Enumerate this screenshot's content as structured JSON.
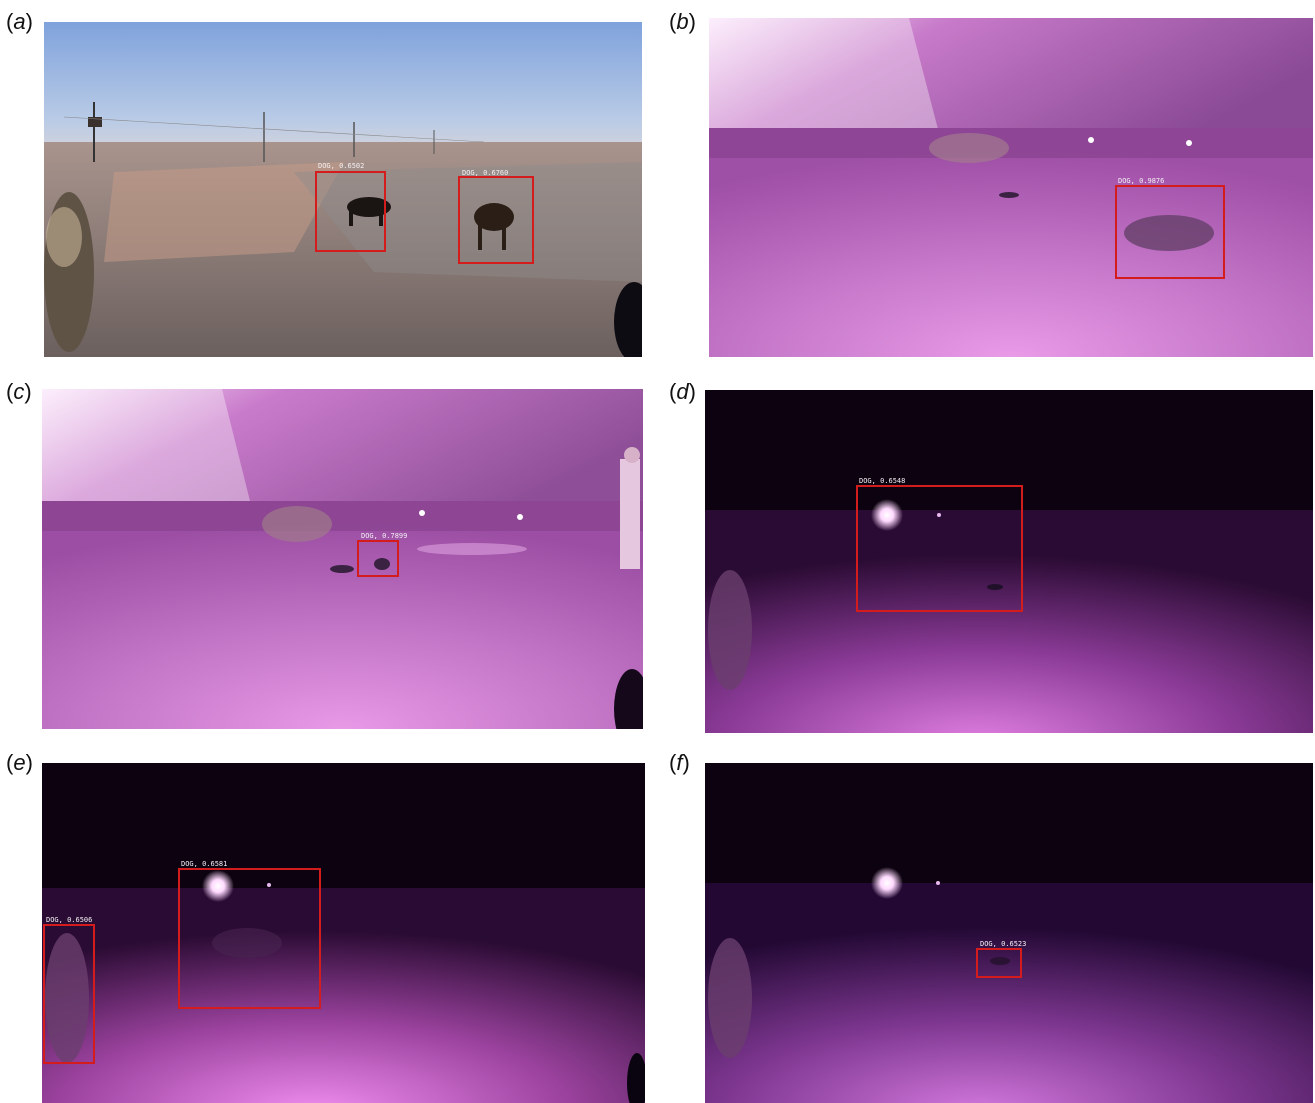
{
  "figure": {
    "panels": [
      {
        "id": "a",
        "label_prefix": "(",
        "label_letter": "a",
        "label_suffix": ")",
        "scene": "daylight",
        "detections": [
          {
            "text": "DOG, 0.6502"
          },
          {
            "text": "DOG, 0.6760"
          }
        ]
      },
      {
        "id": "b",
        "label_prefix": "(",
        "label_letter": "b",
        "label_suffix": ")",
        "scene": "dusk-infrared",
        "detections": [
          {
            "text": "DOG, 0.9876"
          }
        ]
      },
      {
        "id": "c",
        "label_prefix": "(",
        "label_letter": "c",
        "label_suffix": ")",
        "scene": "dusk-infrared",
        "detections": [
          {
            "text": "DOG, 0.7899"
          }
        ]
      },
      {
        "id": "d",
        "label_prefix": "(",
        "label_letter": "d",
        "label_suffix": ")",
        "scene": "night-infrared",
        "detections": [
          {
            "text": "DOG, 0.6548"
          }
        ]
      },
      {
        "id": "e",
        "label_prefix": "(",
        "label_letter": "e",
        "label_suffix": ")",
        "scene": "night-infrared",
        "detections": [
          {
            "text": "DOG, 0.6581"
          },
          {
            "text": "DOG, 0.6506"
          }
        ]
      },
      {
        "id": "f",
        "label_prefix": "(",
        "label_letter": "f",
        "label_suffix": ")",
        "scene": "night-infrared",
        "detections": [
          {
            "text": "DOG, 0.6523"
          }
        ]
      }
    ],
    "colors": {
      "box": "#d41c1c",
      "sky_day": "#8fb4e8",
      "ground_day": "#7d6f6a",
      "ir_magenta": "#c560c8",
      "night_sky": "#0d0210"
    }
  }
}
